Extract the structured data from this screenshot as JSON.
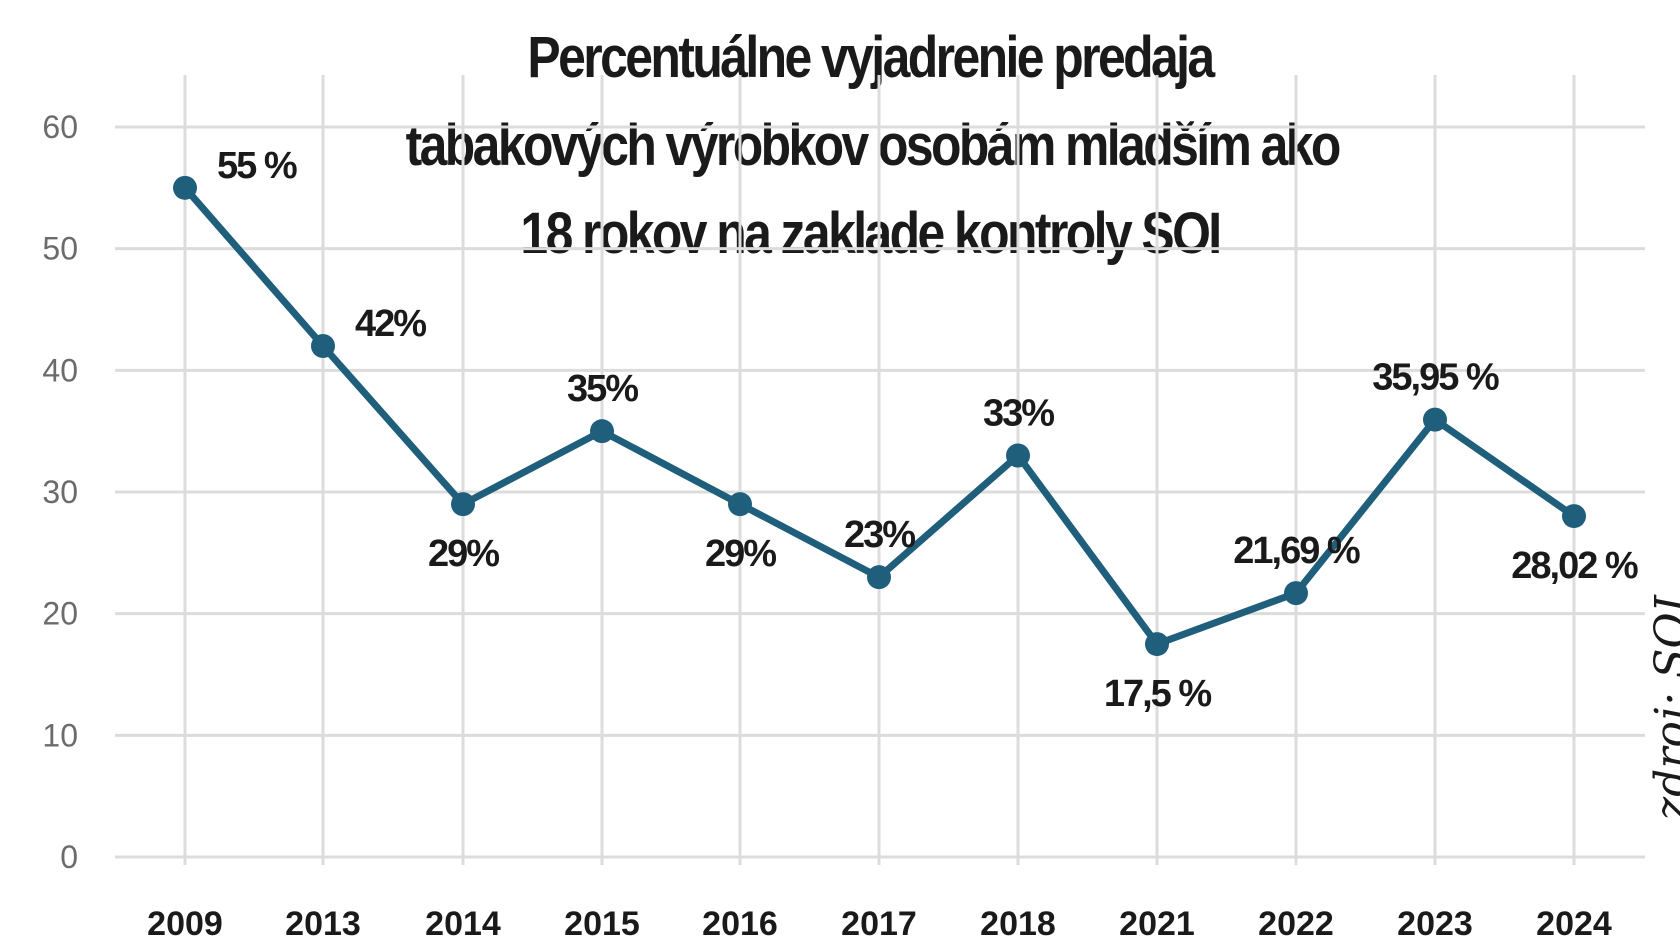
{
  "chart_data": {
    "type": "line",
    "title_lines": [
      "Percentuálne vyjadrenie predaja",
      "tabakových výrobkov osobám mladším ako",
      "18 rokov na zaklade kontroly SOI"
    ],
    "source": "zdroj: SOI",
    "categories": [
      "2009",
      "2013",
      "2014",
      "2015",
      "2016",
      "2017",
      "2018",
      "2021",
      "2022",
      "2023",
      "2024"
    ],
    "values": [
      55,
      42,
      29,
      35,
      29,
      23,
      33,
      17.5,
      21.69,
      35.95,
      28.02
    ],
    "data_labels": [
      "55 %",
      "42%",
      "29%",
      "35%",
      "29%",
      "23%",
      "33%",
      "17,5 %",
      "21,69 %",
      "35,95 %",
      "28,02 %"
    ],
    "label_positions": [
      "right",
      "right",
      "below",
      "above",
      "below",
      "above",
      "above",
      "below",
      "above",
      "above",
      "below"
    ],
    "yticks": [
      "0",
      "10",
      "20",
      "30",
      "40",
      "50",
      "60"
    ],
    "ylim": [
      0,
      60
    ],
    "grid": true,
    "line_color": "#1f5f7c",
    "grid_color": "#dcdcdc"
  }
}
